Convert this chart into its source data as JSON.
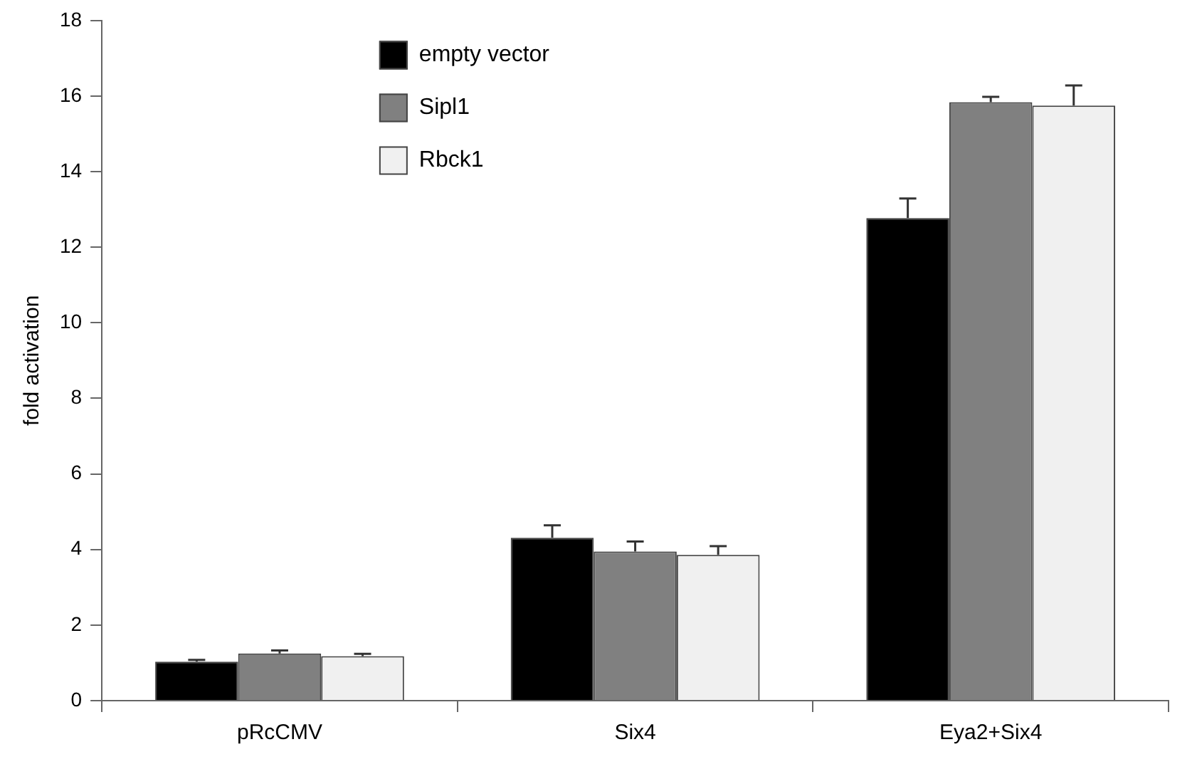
{
  "chart_data": {
    "type": "bar",
    "ylabel": "fold activation",
    "categories": [
      "pRcCMV",
      "Six4",
      "Eya2+Six4"
    ],
    "series": [
      {
        "name": "empty vector",
        "color": "#000000",
        "values": [
          1.03,
          4.31,
          12.77
        ],
        "errors": [
          [
            1.03,
            1.08
          ],
          [
            4.31,
            4.64
          ],
          [
            12.77,
            13.29
          ]
        ]
      },
      {
        "name": "Sipl1",
        "color": "#808080",
        "values": [
          1.25,
          3.95,
          15.84
        ],
        "errors": [
          [
            1.25,
            1.33
          ],
          [
            3.95,
            4.21
          ],
          [
            15.84,
            15.98
          ]
        ]
      },
      {
        "name": "Rbck1",
        "color": "#f0f0f0",
        "values": [
          1.18,
          3.86,
          15.75
        ],
        "errors": [
          [
            1.18,
            1.24
          ],
          [
            3.86,
            4.09
          ],
          [
            15.75,
            16.28
          ]
        ]
      }
    ],
    "ylim": [
      0,
      18
    ],
    "yticks": [
      0,
      2,
      4,
      6,
      8,
      10,
      12,
      14,
      16,
      18
    ],
    "grid": false,
    "legend": "top left"
  }
}
